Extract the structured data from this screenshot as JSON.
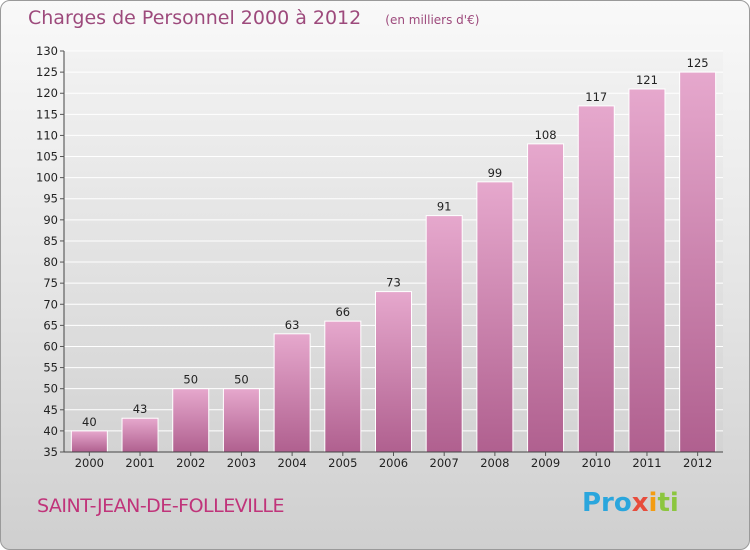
{
  "title": "Charges de Personnel 2000 à 2012",
  "unit": "(en milliers d'€)",
  "commune": "SAINT-JEAN-DE-FOLLEVILLE",
  "logo": {
    "part1": "Pro",
    "part2": "x",
    "part3": "i",
    "part4": "ti"
  },
  "colors": {
    "bar_top": "#e6a8cd",
    "bar_bottom": "#b0608f",
    "title": "#9d4a7c",
    "commune": "#c0347a"
  },
  "chart_data": {
    "type": "bar",
    "title": "Charges de Personnel 2000 à 2012",
    "categories": [
      "2000",
      "2001",
      "2002",
      "2003",
      "2004",
      "2005",
      "2006",
      "2007",
      "2008",
      "2009",
      "2010",
      "2011",
      "2012"
    ],
    "values": [
      40,
      43,
      50,
      50,
      63,
      66,
      73,
      91,
      99,
      108,
      117,
      121,
      125
    ],
    "ylim": [
      35,
      130
    ],
    "yticks": [
      35,
      40,
      45,
      50,
      55,
      60,
      65,
      70,
      75,
      80,
      85,
      90,
      95,
      100,
      105,
      110,
      115,
      120,
      125,
      130
    ],
    "grid": true,
    "legend": "none"
  }
}
